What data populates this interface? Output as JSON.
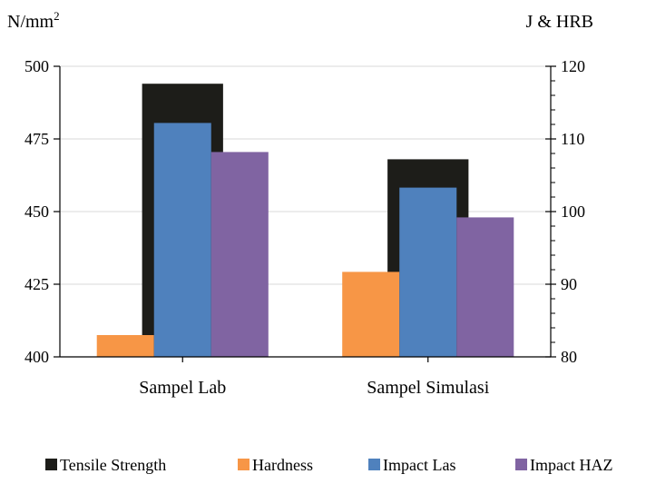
{
  "chart_data": {
    "type": "bar",
    "categories": [
      "Sampel Lab",
      "Sampel Simulasi"
    ],
    "left_axis": {
      "label": "N/mm",
      "label_superscript": "2",
      "range": [
        400,
        500
      ],
      "ticks": [
        "400",
        "425",
        "450",
        "475",
        "500"
      ]
    },
    "right_axis": {
      "label": "J & HRB",
      "range": [
        80,
        120
      ],
      "ticks": [
        "80",
        "90",
        "100",
        "110",
        "120"
      ]
    },
    "series": [
      {
        "name": "Tensile Strength",
        "axis": "left",
        "color": "#1d1d19",
        "values": [
          494,
          468
        ]
      },
      {
        "name": "Hardness",
        "axis": "right",
        "color": "#f79646",
        "values": [
          83,
          91.7
        ]
      },
      {
        "name": "Impact Las",
        "axis": "right",
        "color": "#4f81bd",
        "values": [
          112.2,
          103.3
        ]
      },
      {
        "name": "Impact HAZ",
        "axis": "right",
        "color": "#8064a2",
        "values": [
          108.2,
          99.2
        ]
      }
    ],
    "grid": true,
    "legend_position": "bottom"
  }
}
